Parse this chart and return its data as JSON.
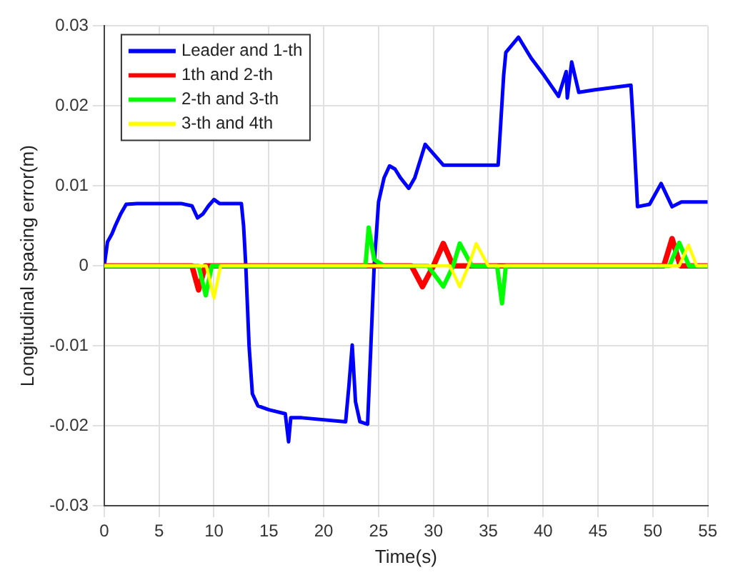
{
  "chart_data": {
    "type": "line",
    "xlabel": "Time(s)",
    "ylabel": "Longitudinal spacing error(m)",
    "xlim": [
      0,
      55
    ],
    "xticks": [
      0,
      5,
      10,
      15,
      20,
      25,
      30,
      35,
      40,
      45,
      50,
      55
    ],
    "ylim": [
      -0.03,
      0.03
    ],
    "yticks": [
      -0.03,
      -0.02,
      -0.01,
      0,
      0.01,
      0.02,
      0.03
    ],
    "grid": true,
    "legend": "top left",
    "marker": "none",
    "line_style": "solid",
    "series": [
      {
        "name": "Leader and 1-th",
        "color": "#0000ff",
        "x": [
          0,
          0.3,
          0.7,
          1,
          1.5,
          2,
          3,
          5,
          7,
          8,
          8.5,
          9,
          9.5,
          10,
          10.5,
          12.5,
          12.7,
          12.9,
          13.2,
          13.5,
          14,
          15,
          16.5,
          16.8,
          17,
          18,
          22,
          22.3,
          22.6,
          22.9,
          23.3,
          24,
          24.3,
          24.6,
          25,
          25.5,
          26,
          26.5,
          27,
          27.75,
          28.3,
          29.25,
          30.9,
          35.9,
          36.4,
          36.6,
          37.75,
          38.9,
          40.1,
          41.4,
          42.1,
          42.2,
          42.6,
          43.25,
          44.6,
          48,
          48.2,
          48.6,
          49.7,
          50.75,
          51.75,
          52.6,
          55
        ],
        "values": [
          0,
          0.003,
          0.004,
          0.005,
          0.0065,
          0.0077,
          0.0078,
          0.0078,
          0.0078,
          0.0075,
          0.006,
          0.0065,
          0.0075,
          0.0083,
          0.0078,
          0.0078,
          0.005,
          0,
          -0.01,
          -0.016,
          -0.0175,
          -0.018,
          -0.0185,
          -0.022,
          -0.019,
          -0.019,
          -0.0195,
          -0.015,
          -0.0099,
          -0.017,
          -0.0195,
          -0.0198,
          -0.01,
          0,
          0.008,
          0.011,
          0.0125,
          0.0121,
          0.011,
          0.0097,
          0.011,
          0.0152,
          0.0126,
          0.0126,
          0.0238,
          0.0267,
          0.0286,
          0.026,
          0.0238,
          0.0212,
          0.0243,
          0.021,
          0.0255,
          0.0217,
          0.022,
          0.0226,
          0.018,
          0.0074,
          0.0077,
          0.0103,
          0.0074,
          0.008,
          0.008
        ]
      },
      {
        "name": "1th and 2-th",
        "color": "#ff0000",
        "x": [
          0,
          8,
          8.6,
          9.2,
          9.6,
          28,
          29,
          30,
          30.9,
          31.8,
          33,
          51,
          51.75,
          52.5,
          55
        ],
        "values": [
          0,
          0,
          -0.003,
          0,
          0,
          0,
          -0.0026,
          0,
          0.0028,
          0,
          0,
          0,
          0.0034,
          0,
          0
        ]
      },
      {
        "name": "2-th and 3-th",
        "color": "#00ff00",
        "x": [
          0,
          8.6,
          9.25,
          9.8,
          10.2,
          23.8,
          24.1,
          24.6,
          25.5,
          29.5,
          30.9,
          31.8,
          32.4,
          33.5,
          35.8,
          36.25,
          36.6,
          37,
          51.5,
          52.4,
          53.3,
          55
        ],
        "values": [
          0,
          0,
          -0.0037,
          0,
          0,
          0,
          0.0048,
          0.0008,
          0,
          0,
          -0.0026,
          0,
          0.0028,
          0,
          0,
          -0.0047,
          0,
          0,
          0,
          0.0029,
          0,
          0
        ]
      },
      {
        "name": "3-th and 4th",
        "color": "#ffff00",
        "x": [
          0,
          9.3,
          10,
          10.6,
          31.5,
          32.4,
          33.2,
          33.9,
          35,
          52.4,
          53.25,
          54,
          55
        ],
        "values": [
          0,
          0,
          -0.004,
          0,
          0,
          -0.0026,
          0,
          0.0028,
          0,
          0,
          0.0026,
          0,
          0
        ]
      }
    ]
  }
}
